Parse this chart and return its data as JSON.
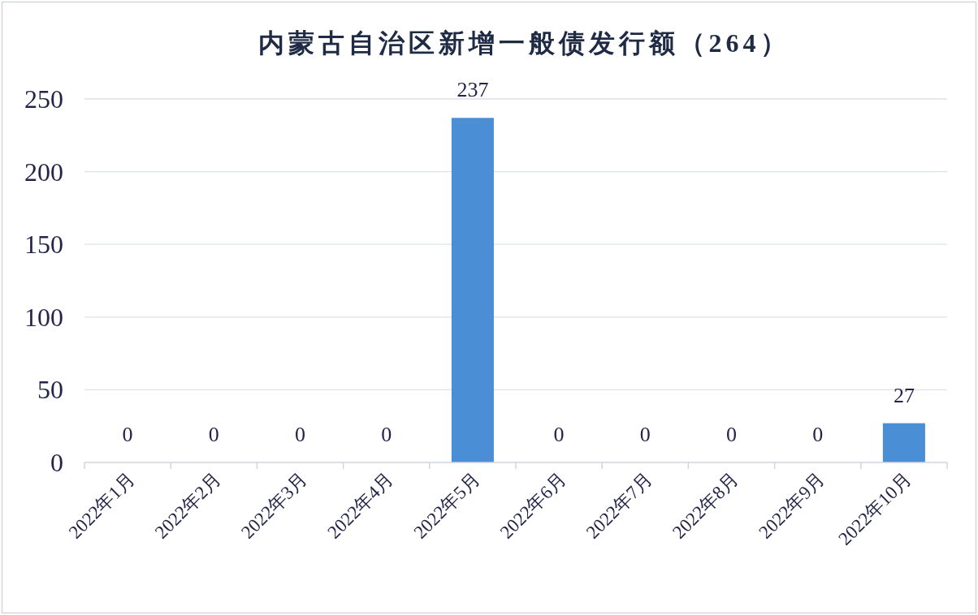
{
  "chart_data": {
    "type": "bar",
    "title": "内蒙古自治区新增一般债发行额（264）",
    "categories": [
      "2022年1月",
      "2022年2月",
      "2022年3月",
      "2022年4月",
      "2022年5月",
      "2022年6月",
      "2022年7月",
      "2022年8月",
      "2022年9月",
      "2022年10月"
    ],
    "values": [
      0,
      0,
      0,
      0,
      237,
      0,
      0,
      0,
      0,
      27
    ],
    "color": "#4a8fd6",
    "ylim": [
      0,
      250
    ],
    "yticks": [
      0,
      50,
      100,
      150,
      200,
      250
    ],
    "grid": "y",
    "data_labels": true
  }
}
